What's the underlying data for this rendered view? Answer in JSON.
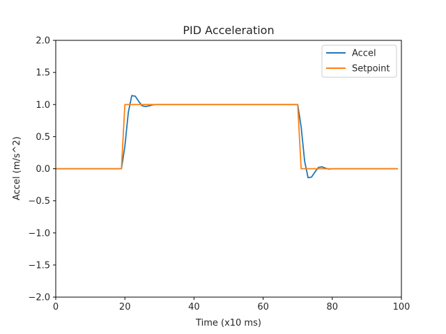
{
  "chart_data": {
    "type": "line",
    "title": "PID Acceleration",
    "xlabel": "Time (x10 ms)",
    "ylabel": "Accel (m/s^2)",
    "xlim": [
      0,
      100
    ],
    "ylim": [
      -2.0,
      2.0
    ],
    "xticks": [
      0,
      20,
      40,
      60,
      80,
      100
    ],
    "yticks": [
      -2.0,
      -1.5,
      -1.0,
      -0.5,
      0.0,
      0.5,
      1.0,
      1.5,
      2.0
    ],
    "grid": false,
    "legend_position": "top-right",
    "series": [
      {
        "name": "Accel",
        "color": "#1f77b4",
        "x": [
          0,
          1,
          2,
          3,
          4,
          5,
          6,
          7,
          8,
          9,
          10,
          11,
          12,
          13,
          14,
          15,
          16,
          17,
          18,
          19,
          20,
          21,
          22,
          23,
          24,
          25,
          26,
          27,
          28,
          29,
          30,
          31,
          32,
          33,
          34,
          35,
          36,
          37,
          38,
          39,
          40,
          41,
          42,
          43,
          44,
          45,
          46,
          47,
          48,
          49,
          50,
          51,
          52,
          53,
          54,
          55,
          56,
          57,
          58,
          59,
          60,
          61,
          62,
          63,
          64,
          65,
          66,
          67,
          68,
          69,
          70,
          71,
          72,
          73,
          74,
          75,
          76,
          77,
          78,
          79,
          80,
          81,
          82,
          83,
          84,
          85,
          86,
          87,
          88,
          89,
          90,
          91,
          92,
          93,
          94,
          95,
          96,
          97,
          98,
          99
        ],
        "y": [
          0,
          0,
          0,
          0,
          0,
          0,
          0,
          0,
          0,
          0,
          0,
          0,
          0,
          0,
          0,
          0,
          0,
          0,
          0,
          0,
          0.35,
          0.88,
          1.14,
          1.13,
          1.05,
          0.98,
          0.97,
          0.98,
          0.995,
          1.0,
          1.0,
          1.0,
          1.0,
          1.0,
          1.0,
          1.0,
          1.0,
          1.0,
          1.0,
          1.0,
          1.0,
          1.0,
          1.0,
          1.0,
          1.0,
          1.0,
          1.0,
          1.0,
          1.0,
          1.0,
          1.0,
          1.0,
          1.0,
          1.0,
          1.0,
          1.0,
          1.0,
          1.0,
          1.0,
          1.0,
          1.0,
          1.0,
          1.0,
          1.0,
          1.0,
          1.0,
          1.0,
          1.0,
          1.0,
          1.0,
          1.0,
          0.65,
          0.12,
          -0.14,
          -0.13,
          -0.05,
          0.02,
          0.03,
          0.01,
          -0.005,
          0,
          0,
          0,
          0,
          0,
          0,
          0,
          0,
          0,
          0,
          0,
          0,
          0,
          0,
          0,
          0,
          0,
          0,
          0,
          0
        ]
      },
      {
        "name": "Setpoint",
        "color": "#ff7f0e",
        "x": [
          0,
          1,
          2,
          3,
          4,
          5,
          6,
          7,
          8,
          9,
          10,
          11,
          12,
          13,
          14,
          15,
          16,
          17,
          18,
          19,
          20,
          21,
          22,
          23,
          24,
          25,
          26,
          27,
          28,
          29,
          30,
          31,
          32,
          33,
          34,
          35,
          36,
          37,
          38,
          39,
          40,
          41,
          42,
          43,
          44,
          45,
          46,
          47,
          48,
          49,
          50,
          51,
          52,
          53,
          54,
          55,
          56,
          57,
          58,
          59,
          60,
          61,
          62,
          63,
          64,
          65,
          66,
          67,
          68,
          69,
          70,
          71,
          72,
          73,
          74,
          75,
          76,
          77,
          78,
          79,
          80,
          81,
          82,
          83,
          84,
          85,
          86,
          87,
          88,
          89,
          90,
          91,
          92,
          93,
          94,
          95,
          96,
          97,
          98,
          99
        ],
        "y": [
          0,
          0,
          0,
          0,
          0,
          0,
          0,
          0,
          0,
          0,
          0,
          0,
          0,
          0,
          0,
          0,
          0,
          0,
          0,
          0,
          1,
          1,
          1,
          1,
          1,
          1,
          1,
          1,
          1,
          1,
          1,
          1,
          1,
          1,
          1,
          1,
          1,
          1,
          1,
          1,
          1,
          1,
          1,
          1,
          1,
          1,
          1,
          1,
          1,
          1,
          1,
          1,
          1,
          1,
          1,
          1,
          1,
          1,
          1,
          1,
          1,
          1,
          1,
          1,
          1,
          1,
          1,
          1,
          1,
          1,
          1,
          0,
          0,
          0,
          0,
          0,
          0,
          0,
          0,
          0,
          0,
          0,
          0,
          0,
          0,
          0,
          0,
          0,
          0,
          0,
          0,
          0,
          0,
          0,
          0,
          0,
          0,
          0,
          0,
          0
        ]
      }
    ]
  }
}
